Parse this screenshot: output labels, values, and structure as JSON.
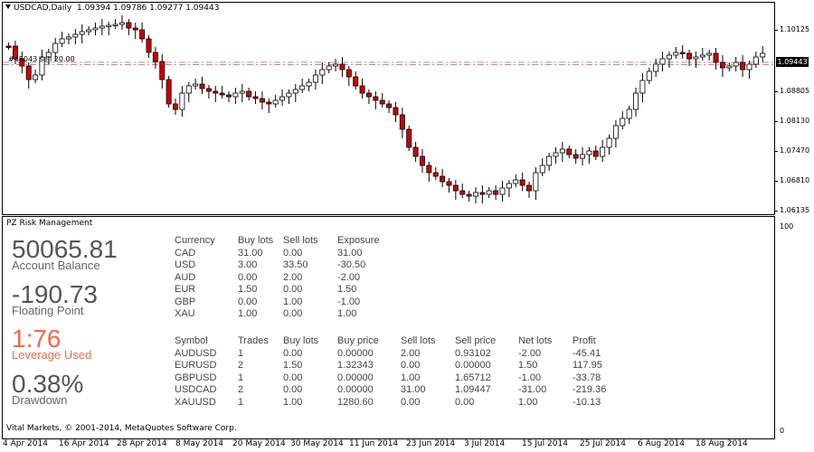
{
  "chart": {
    "symbol_title": "USDCAD,Daily",
    "ohlc": "1.09394 1.09786 1.09277 1.09443",
    "order_label": "#45043 sell 20.00",
    "current_price": "1.09443",
    "price_labels": [
      "1.10125",
      "1.09443",
      "1.08805",
      "1.08130",
      "1.07470",
      "1.06810",
      "1.06135"
    ],
    "sub_axis_labels": [
      "100",
      "0"
    ],
    "date_labels": [
      "4 Apr 2014",
      "16 Apr 2014",
      "28 Apr 2014",
      "8 May 2014",
      "20 May 2014",
      "30 May 2014",
      "11 Jun 2014",
      "23 Jun 2014",
      "3 Jul 2014",
      "15 Jul 2014",
      "25 Jul 2014",
      "6 Aug 2014",
      "18 Aug 2014"
    ],
    "colors": {
      "bull": "#ffffff",
      "bear": "#cc0000",
      "outline": "#000000",
      "level_line": "#d08080"
    }
  },
  "panel": {
    "title": "PZ Risk Management",
    "stats": [
      {
        "value": "50065.81",
        "label": "Account Balance"
      },
      {
        "value": "-190.73",
        "label": "Floating Point"
      },
      {
        "value": "1:76",
        "label": "Leverage Used"
      },
      {
        "value": "0.38%",
        "label": "Drawdown"
      }
    ],
    "currency_table": {
      "headers": [
        "Currency",
        "Buy lots",
        "Sell lots",
        "Exposure"
      ],
      "rows": [
        [
          "CAD",
          "31.00",
          "0.00",
          "31.00"
        ],
        [
          "USD",
          "3.00",
          "33.50",
          "-30.50"
        ],
        [
          "AUD",
          "0.00",
          "2.00",
          "-2.00"
        ],
        [
          "EUR",
          "1.50",
          "0.00",
          "1.50"
        ],
        [
          "GBP",
          "0.00",
          "1.00",
          "-1.00"
        ],
        [
          "XAU",
          "1.00",
          "0.00",
          "1.00"
        ]
      ]
    },
    "symbol_table": {
      "headers": [
        "Symbol",
        "Trades",
        "Buy lots",
        "Buy price",
        "Sell lots",
        "Sell price",
        "Net lots",
        "Profit"
      ],
      "rows": [
        [
          "AUDUSD",
          "1",
          "0.00",
          "0.00000",
          "2.00",
          "0.93102",
          "-2.00",
          "-45.41"
        ],
        [
          "EURUSD",
          "2",
          "1.50",
          "1.32343",
          "0.00",
          "0.00000",
          "1.50",
          "117.95"
        ],
        [
          "GBPUSD",
          "1",
          "0.00",
          "0.00000",
          "1.00",
          "1.65712",
          "-1.00",
          "-33.78"
        ],
        [
          "USDCAD",
          "2",
          "0.00",
          "0.00000",
          "31.00",
          "1.09447",
          "-31.00",
          "-219.36"
        ],
        [
          "XAUUSD",
          "1",
          "1.00",
          "1280.60",
          "0.00",
          "0.00",
          "1.00",
          "-10.13"
        ]
      ]
    },
    "footer": "Vital Markets, © 2001-2014, MetaQuotes Software Corp."
  }
}
